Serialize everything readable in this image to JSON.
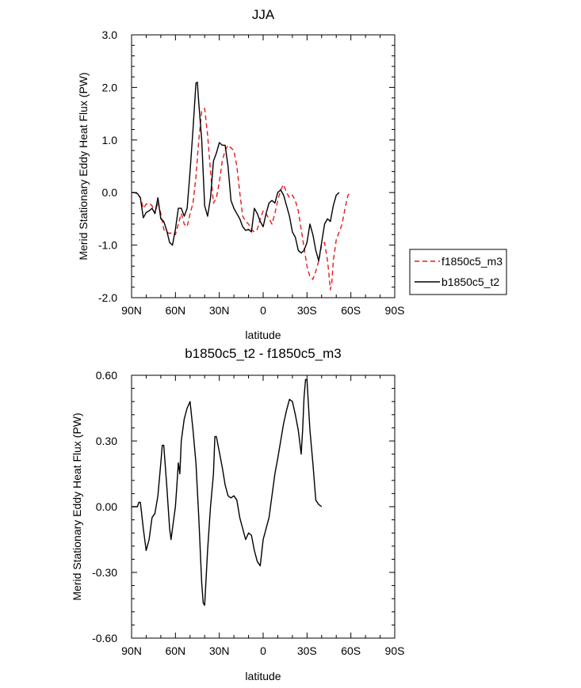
{
  "chart_data": [
    {
      "type": "line",
      "title": "JJA",
      "xlabel": "latitude",
      "ylabel": "Merid Stationary Eddy Heat Flux (PW)",
      "xlim": [
        90,
        -90
      ],
      "ylim": [
        -2.0,
        3.0
      ],
      "x_ticks": [
        90,
        60,
        30,
        0,
        -30,
        -60,
        -90
      ],
      "x_tick_labels": [
        "90N",
        "60N",
        "30N",
        "0",
        "30S",
        "60S",
        "90S"
      ],
      "y_ticks": [
        -2.0,
        -1.0,
        0.0,
        1.0,
        2.0,
        3.0
      ],
      "y_tick_labels": [
        "-2.0",
        "-1.0",
        "0.0",
        "1.0",
        "2.0",
        "3.0"
      ],
      "legend": "right, below middle",
      "grid": false,
      "series": [
        {
          "name": "f1850c5_m3",
          "color": "#e41a1c",
          "dash": "dashed",
          "points": [
            [
              90,
              0.0
            ],
            [
              88,
              0.0
            ],
            [
              86,
              -0.02
            ],
            [
              84,
              -0.1
            ],
            [
              82,
              -0.3
            ],
            [
              80,
              -0.22
            ],
            [
              78,
              -0.2
            ],
            [
              76,
              -0.25
            ],
            [
              74,
              -0.4
            ],
            [
              72,
              -0.18
            ],
            [
              70,
              -0.4
            ],
            [
              68,
              -0.7
            ],
            [
              66,
              -0.75
            ],
            [
              64,
              -0.78
            ],
            [
              62,
              -0.75
            ],
            [
              60,
              -0.8
            ],
            [
              58,
              -0.6
            ],
            [
              56,
              -0.4
            ],
            [
              54,
              -0.6
            ],
            [
              52,
              -0.65
            ],
            [
              50,
              -0.4
            ],
            [
              48,
              -0.2
            ],
            [
              46,
              0.3
            ],
            [
              44,
              1.0
            ],
            [
              42,
              1.55
            ],
            [
              40,
              1.6
            ],
            [
              38,
              1.1
            ],
            [
              36,
              0.4
            ],
            [
              34,
              -0.2
            ],
            [
              32,
              -0.1
            ],
            [
              30,
              0.2
            ],
            [
              28,
              0.6
            ],
            [
              26,
              0.8
            ],
            [
              24,
              0.9
            ],
            [
              22,
              0.85
            ],
            [
              20,
              0.8
            ],
            [
              18,
              0.5
            ],
            [
              16,
              0.0
            ],
            [
              14,
              -0.45
            ],
            [
              12,
              -0.55
            ],
            [
              10,
              -0.6
            ],
            [
              8,
              -0.7
            ],
            [
              6,
              -0.75
            ],
            [
              4,
              -0.7
            ],
            [
              2,
              -0.5
            ],
            [
              0,
              -0.35
            ],
            [
              -2,
              -0.4
            ],
            [
              -4,
              -0.5
            ],
            [
              -6,
              -0.6
            ],
            [
              -8,
              -0.4
            ],
            [
              -10,
              -0.15
            ],
            [
              -12,
              0.05
            ],
            [
              -14,
              0.15
            ],
            [
              -16,
              0.0
            ],
            [
              -18,
              -0.1
            ],
            [
              -20,
              -0.05
            ],
            [
              -22,
              -0.15
            ],
            [
              -24,
              -0.35
            ],
            [
              -26,
              -0.7
            ],
            [
              -28,
              -1.05
            ],
            [
              -30,
              -1.4
            ],
            [
              -32,
              -1.6
            ],
            [
              -34,
              -1.65
            ],
            [
              -36,
              -1.5
            ],
            [
              -38,
              -1.3
            ],
            [
              -40,
              -1.0
            ],
            [
              -42,
              -0.95
            ],
            [
              -44,
              -1.3
            ],
            [
              -45,
              -1.55
            ],
            [
              -46,
              -1.85
            ],
            [
              -47,
              -1.7
            ],
            [
              -48,
              -1.3
            ],
            [
              -50,
              -0.9
            ],
            [
              -52,
              -0.75
            ],
            [
              -54,
              -0.6
            ],
            [
              -56,
              -0.3
            ],
            [
              -58,
              -0.05
            ],
            [
              -60,
              0.0
            ]
          ]
        },
        {
          "name": "b1850c5_t2",
          "color": "#000000",
          "dash": "solid",
          "points": [
            [
              90,
              0.0
            ],
            [
              88,
              0.0
            ],
            [
              86,
              -0.02
            ],
            [
              84,
              -0.1
            ],
            [
              82,
              -0.48
            ],
            [
              80,
              -0.38
            ],
            [
              78,
              -0.35
            ],
            [
              76,
              -0.3
            ],
            [
              74,
              -0.4
            ],
            [
              72,
              -0.1
            ],
            [
              70,
              -0.5
            ],
            [
              68,
              -0.55
            ],
            [
              66,
              -0.72
            ],
            [
              64,
              -0.95
            ],
            [
              62,
              -1.0
            ],
            [
              60,
              -0.7
            ],
            [
              58,
              -0.3
            ],
            [
              56,
              -0.3
            ],
            [
              54,
              -0.45
            ],
            [
              52,
              -0.3
            ],
            [
              50,
              0.4
            ],
            [
              48,
              1.2
            ],
            [
              46,
              2.08
            ],
            [
              45,
              2.1
            ],
            [
              44,
              1.7
            ],
            [
              42,
              1.0
            ],
            [
              40,
              -0.25
            ],
            [
              38,
              -0.45
            ],
            [
              36,
              -0.1
            ],
            [
              34,
              0.6
            ],
            [
              32,
              0.75
            ],
            [
              30,
              0.95
            ],
            [
              28,
              0.9
            ],
            [
              26,
              0.9
            ],
            [
              24,
              0.5
            ],
            [
              22,
              -0.15
            ],
            [
              20,
              -0.3
            ],
            [
              18,
              -0.4
            ],
            [
              16,
              -0.5
            ],
            [
              14,
              -0.65
            ],
            [
              12,
              -0.72
            ],
            [
              10,
              -0.7
            ],
            [
              8,
              -0.75
            ],
            [
              6,
              -0.3
            ],
            [
              4,
              -0.4
            ],
            [
              2,
              -0.55
            ],
            [
              0,
              -0.65
            ],
            [
              -2,
              -0.4
            ],
            [
              -4,
              -0.2
            ],
            [
              -6,
              -0.15
            ],
            [
              -8,
              -0.2
            ],
            [
              -10,
              0.0
            ],
            [
              -12,
              0.05
            ],
            [
              -14,
              -0.05
            ],
            [
              -16,
              -0.25
            ],
            [
              -18,
              -0.45
            ],
            [
              -20,
              -0.75
            ],
            [
              -22,
              -0.85
            ],
            [
              -24,
              -1.1
            ],
            [
              -26,
              -1.15
            ],
            [
              -28,
              -1.1
            ],
            [
              -30,
              -0.95
            ],
            [
              -32,
              -0.6
            ],
            [
              -34,
              -0.8
            ],
            [
              -36,
              -1.1
            ],
            [
              -38,
              -1.3
            ],
            [
              -40,
              -0.95
            ],
            [
              -42,
              -0.6
            ],
            [
              -44,
              -0.5
            ],
            [
              -46,
              -0.55
            ],
            [
              -48,
              -0.25
            ],
            [
              -50,
              -0.05
            ],
            [
              -52,
              0.0
            ]
          ]
        }
      ]
    },
    {
      "type": "line",
      "title": "b1850c5_t2 - f1850c5_m3",
      "xlabel": "latitude",
      "ylabel": "Merid Stationary Eddy Heat Flux (PW)",
      "xlim": [
        90,
        -90
      ],
      "ylim": [
        -0.6,
        0.6
      ],
      "x_ticks": [
        90,
        60,
        30,
        0,
        -30,
        -60,
        -90
      ],
      "x_tick_labels": [
        "90N",
        "60N",
        "30N",
        "0",
        "30S",
        "60S",
        "90S"
      ],
      "y_ticks": [
        -0.6,
        -0.3,
        0.0,
        0.3,
        0.6
      ],
      "y_tick_labels": [
        "-0.60",
        "-0.30",
        "0.00",
        "0.30",
        "0.60"
      ],
      "grid": false,
      "series": [
        {
          "color": "#000000",
          "dash": "solid",
          "points": [
            [
              90,
              0.0
            ],
            [
              86,
              0.0
            ],
            [
              85,
              0.02
            ],
            [
              84,
              0.02
            ],
            [
              82,
              -0.1
            ],
            [
              80,
              -0.2
            ],
            [
              78,
              -0.15
            ],
            [
              76,
              -0.05
            ],
            [
              74,
              -0.03
            ],
            [
              72,
              0.05
            ],
            [
              70,
              0.2
            ],
            [
              69,
              0.28
            ],
            [
              68,
              0.28
            ],
            [
              66,
              0.1
            ],
            [
              64,
              -0.1
            ],
            [
              63,
              -0.15
            ],
            [
              62,
              -0.1
            ],
            [
              60,
              0.0
            ],
            [
              59,
              0.1
            ],
            [
              58,
              0.2
            ],
            [
              57,
              0.15
            ],
            [
              56,
              0.3
            ],
            [
              54,
              0.4
            ],
            [
              52,
              0.45
            ],
            [
              50,
              0.48
            ],
            [
              48,
              0.35
            ],
            [
              46,
              0.2
            ],
            [
              44,
              -0.05
            ],
            [
              42,
              -0.35
            ],
            [
              41,
              -0.44
            ],
            [
              40,
              -0.45
            ],
            [
              38,
              -0.2
            ],
            [
              36,
              0.0
            ],
            [
              34,
              0.15
            ],
            [
              33,
              0.32
            ],
            [
              32,
              0.32
            ],
            [
              30,
              0.25
            ],
            [
              28,
              0.18
            ],
            [
              26,
              0.1
            ],
            [
              24,
              0.05
            ],
            [
              22,
              0.04
            ],
            [
              20,
              0.05
            ],
            [
              18,
              0.03
            ],
            [
              16,
              -0.05
            ],
            [
              14,
              -0.1
            ],
            [
              12,
              -0.15
            ],
            [
              10,
              -0.12
            ],
            [
              8,
              -0.13
            ],
            [
              6,
              -0.2
            ],
            [
              4,
              -0.25
            ],
            [
              2,
              -0.27
            ],
            [
              0,
              -0.15
            ],
            [
              -2,
              -0.1
            ],
            [
              -4,
              -0.05
            ],
            [
              -6,
              0.05
            ],
            [
              -8,
              0.15
            ],
            [
              -10,
              0.22
            ],
            [
              -12,
              0.3
            ],
            [
              -14,
              0.38
            ],
            [
              -16,
              0.44
            ],
            [
              -18,
              0.49
            ],
            [
              -20,
              0.48
            ],
            [
              -22,
              0.42
            ],
            [
              -24,
              0.35
            ],
            [
              -26,
              0.24
            ],
            [
              -27,
              0.35
            ],
            [
              -28,
              0.5
            ],
            [
              -29,
              0.58
            ],
            [
              -30,
              0.58
            ],
            [
              -32,
              0.35
            ],
            [
              -34,
              0.2
            ],
            [
              -36,
              0.03
            ],
            [
              -38,
              0.01
            ],
            [
              -40,
              0.0
            ]
          ]
        }
      ]
    }
  ]
}
